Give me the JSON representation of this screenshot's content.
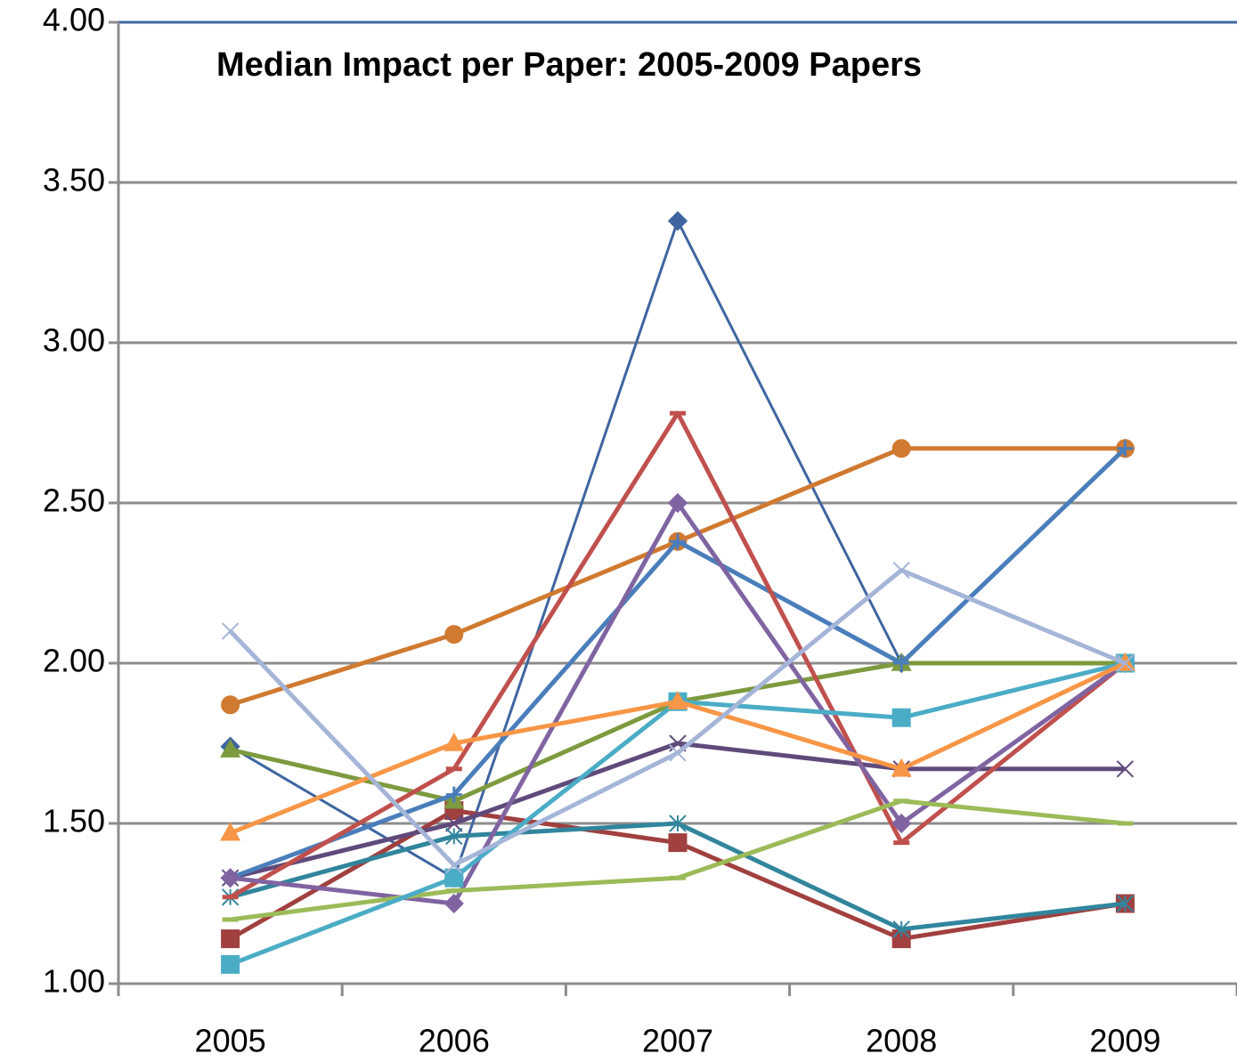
{
  "chart_data": {
    "type": "line",
    "title": "Median Impact per Paper: 2005-2009 Papers",
    "categories": [
      "2005",
      "2006",
      "2007",
      "2008",
      "2009"
    ],
    "ylim": [
      1,
      4
    ],
    "yticks": [
      {
        "value": 1,
        "label": "1.00"
      },
      {
        "value": 1.5,
        "label": "1.50"
      },
      {
        "value": 2,
        "label": "2.00"
      },
      {
        "value": 2.5,
        "label": "2.50"
      },
      {
        "value": 3,
        "label": "3.00"
      },
      {
        "value": 3.5,
        "label": "3.50"
      },
      {
        "value": 4,
        "label": "4.00"
      }
    ],
    "grid": true,
    "series": [
      {
        "color": "#3E65A0",
        "marker": "diamond",
        "values": [
          1.74,
          1.33,
          3.38,
          2.0,
          2.67
        ]
      },
      {
        "color": "#A0403F",
        "marker": "square",
        "values": [
          1.14,
          1.54,
          1.44,
          1.14,
          1.25
        ]
      },
      {
        "color": "#7D9A3F",
        "marker": "triangle",
        "values": [
          1.73,
          1.57,
          1.88,
          2.0,
          2.0
        ]
      },
      {
        "color": "#604A7B",
        "marker": "x",
        "values": [
          1.33,
          1.5,
          1.75,
          1.67,
          1.67
        ]
      },
      {
        "color": "#31859C",
        "marker": "star",
        "values": [
          1.27,
          1.46,
          1.5,
          1.17,
          1.25
        ]
      },
      {
        "color": "#D07A31",
        "marker": "circle",
        "values": [
          1.87,
          2.09,
          2.38,
          2.67,
          2.67
        ]
      },
      {
        "color": "#4A7EBB",
        "marker": "plus",
        "values": [
          1.33,
          1.59,
          2.38,
          2.0,
          2.67
        ]
      },
      {
        "color": "#C0504D",
        "marker": "dash",
        "values": [
          1.27,
          1.67,
          2.78,
          1.44,
          2.0
        ]
      },
      {
        "color": "#8064A2",
        "marker": "diamond",
        "values": [
          1.33,
          1.25,
          2.5,
          1.5,
          2.0
        ]
      },
      {
        "color": "#9BBB59",
        "marker": "dash",
        "values": [
          1.2,
          1.29,
          1.33,
          1.57,
          1.5
        ]
      },
      {
        "color": "#4BACC6",
        "marker": "square",
        "values": [
          1.06,
          1.33,
          1.88,
          1.83,
          2.0
        ]
      },
      {
        "color": "#F79646",
        "marker": "triangle",
        "values": [
          1.47,
          1.75,
          1.88,
          1.67,
          2.0
        ]
      },
      {
        "color": "#A5B5D8",
        "marker": "x",
        "values": [
          2.1,
          1.37,
          1.72,
          2.29,
          2.0
        ]
      }
    ]
  }
}
